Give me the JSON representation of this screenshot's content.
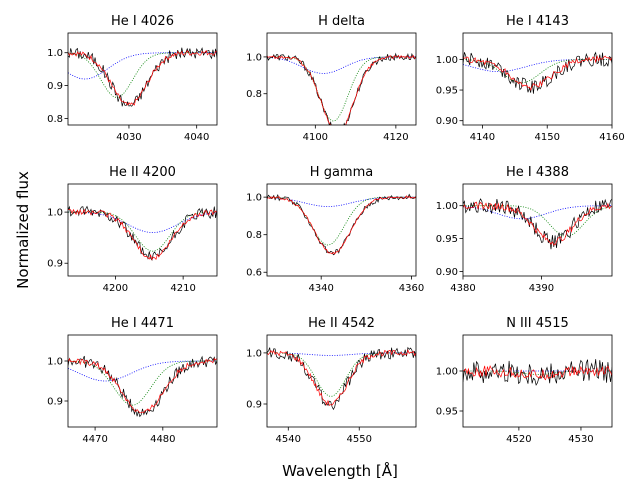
{
  "figure": {
    "xlabel": "Wavelength [Å]",
    "ylabel": "Normalized flux",
    "colors": {
      "observed": "#000000",
      "fit": "#ff0000",
      "model_a": "#008000",
      "model_b": "#0000ff"
    }
  },
  "chart_data": [
    {
      "type": "line",
      "title": "He I 4026",
      "xlim": [
        4021,
        4043
      ],
      "ylim": [
        0.78,
        1.06
      ],
      "xticks": [
        4030,
        4040
      ],
      "yticks": [
        0.8,
        0.9,
        1.0
      ],
      "ytick_labels": [
        "0.8",
        "0.9",
        "1.0"
      ],
      "center": 4030.0,
      "width": 2.6,
      "depth": 0.16,
      "shift_a": -1.8,
      "shift_b": -6.5,
      "depth_b": 0.08,
      "noise": 0.018
    },
    {
      "type": "line",
      "title": "H delta",
      "xlim": [
        4088,
        4125
      ],
      "ylim": [
        0.63,
        1.13
      ],
      "xticks": [
        4100,
        4120
      ],
      "yticks": [
        0.8,
        1.0
      ],
      "ytick_labels": [
        "0.8",
        "1.0"
      ],
      "center": 4105.5,
      "width": 4.0,
      "depth": 0.41,
      "shift_a": -1.0,
      "shift_b": -3.5,
      "depth_b": 0.09,
      "noise": 0.02
    },
    {
      "type": "line",
      "title": "He I 4143",
      "xlim": [
        4137,
        4160
      ],
      "ylim": [
        0.893,
        1.043
      ],
      "xticks": [
        4140,
        4150,
        4160
      ],
      "yticks": [
        0.9,
        0.95,
        1.0
      ],
      "ytick_labels": [
        "0.90",
        "0.95",
        "1.00"
      ],
      "center": 4147.5,
      "width": 3.2,
      "depth": 0.045,
      "shift_a": -1.5,
      "shift_b": -5.0,
      "depth_b": 0.02,
      "noise": 0.012
    },
    {
      "type": "line",
      "title": "He II 4200",
      "xlim": [
        4193,
        4215
      ],
      "ylim": [
        0.875,
        1.055
      ],
      "xticks": [
        4200,
        4210
      ],
      "yticks": [
        0.9,
        1.0
      ],
      "ytick_labels": [
        "0.9",
        "1.0"
      ],
      "center": 4205.5,
      "width": 2.8,
      "depth": 0.09,
      "shift_a": 0.0,
      "shift_b": 0.0,
      "depth_b": 0.04,
      "noise": 0.012
    },
    {
      "type": "line",
      "title": "H gamma",
      "xlim": [
        4328,
        4361
      ],
      "ylim": [
        0.58,
        1.07
      ],
      "xticks": [
        4340,
        4360
      ],
      "yticks": [
        0.6,
        0.8,
        1.0
      ],
      "ytick_labels": [
        "0.6",
        "0.8",
        "1.0"
      ],
      "center": 4342.5,
      "width": 4.0,
      "depth": 0.3,
      "shift_a": -1.0,
      "shift_b": -1.0,
      "depth_b": 0.05,
      "noise": 0.015
    },
    {
      "type": "line",
      "title": "He I 4388",
      "xlim": [
        4380,
        4399
      ],
      "ylim": [
        0.893,
        1.033
      ],
      "xticks": [
        4380,
        4390
      ],
      "yticks": [
        0.9,
        0.95,
        1.0
      ],
      "ytick_labels": [
        "0.90",
        "0.95",
        "1.00"
      ],
      "center": 4391.5,
      "width": 2.4,
      "depth": 0.055,
      "shift_a": 1.7,
      "shift_b": -4.0,
      "depth_b": 0.02,
      "noise": 0.012
    },
    {
      "type": "line",
      "title": "He I 4471",
      "xlim": [
        4466,
        4488
      ],
      "ylim": [
        0.835,
        1.065
      ],
      "xticks": [
        4470,
        4480
      ],
      "yticks": [
        0.9,
        1.0
      ],
      "ytick_labels": [
        "0.9",
        "1.0"
      ],
      "center": 4477.0,
      "width": 3.0,
      "depth": 0.13,
      "shift_a": -1.5,
      "shift_b": -5.5,
      "depth_b": 0.05,
      "noise": 0.015
    },
    {
      "type": "line",
      "title": "He II 4542",
      "xlim": [
        4537,
        4558
      ],
      "ylim": [
        0.855,
        1.035
      ],
      "xticks": [
        4540,
        4550
      ],
      "yticks": [
        0.9,
        1.0
      ],
      "ytick_labels": [
        "0.9",
        "1.0"
      ],
      "center": 4546.0,
      "width": 2.3,
      "depth": 0.1,
      "shift_a": 0.0,
      "shift_b": 0.0,
      "depth_b": 0.005,
      "noise": 0.012
    },
    {
      "type": "line",
      "title": "N III 4515",
      "xlim": [
        4511,
        4535
      ],
      "ylim": [
        0.93,
        1.045
      ],
      "xticks": [
        4520,
        4530
      ],
      "yticks": [
        0.95,
        1.0
      ],
      "ytick_labels": [
        "0.95",
        "1.00"
      ],
      "center": 4523.0,
      "width": 3.0,
      "depth": 0.005,
      "shift_a": 0.0,
      "shift_b": 0.0,
      "depth_b": 0.0,
      "noise": 0.015
    }
  ]
}
